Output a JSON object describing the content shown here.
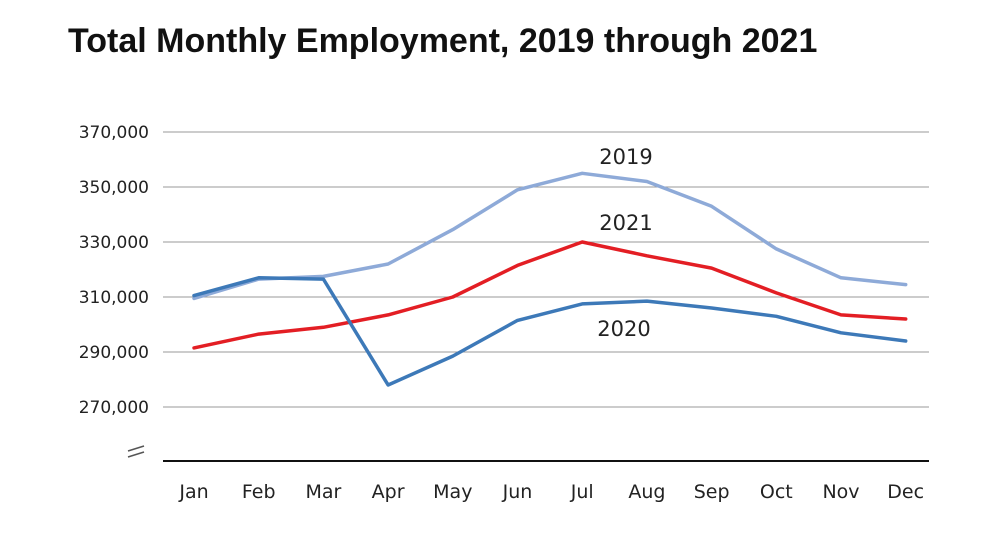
{
  "chart_data": {
    "type": "line",
    "title": "Total Monthly Employment, 2019 through 2021",
    "categories": [
      "Jan",
      "Feb",
      "Mar",
      "Apr",
      "May",
      "Jun",
      "Jul",
      "Aug",
      "Sep",
      "Oct",
      "Nov",
      "Dec"
    ],
    "y_ticks": [
      "370,000",
      "350,000",
      "330,000",
      "310,000",
      "290,000",
      "270,000"
    ],
    "y_tick_values": [
      370000,
      350000,
      330000,
      310000,
      290000,
      270000
    ],
    "ylim": [
      256000,
      374000
    ],
    "axis_break": true,
    "grid": true,
    "legend": "inline labels",
    "series": [
      {
        "name": "2019",
        "color": "#8eaad8",
        "values": [
          309500,
          316500,
          317500,
          322000,
          334500,
          349000,
          355000,
          352000,
          343000,
          327500,
          317000,
          314500
        ]
      },
      {
        "name": "2020",
        "color": "#3d79b8",
        "values": [
          310500,
          317000,
          316500,
          278000,
          288500,
          301500,
          307500,
          308500,
          306000,
          303000,
          297000,
          294000
        ]
      },
      {
        "name": "2021",
        "color": "#e31e24",
        "values": [
          291500,
          296500,
          299000,
          303500,
          310000,
          321500,
          330000,
          325000,
          320500,
          311500,
          303500,
          302000
        ]
      }
    ]
  }
}
